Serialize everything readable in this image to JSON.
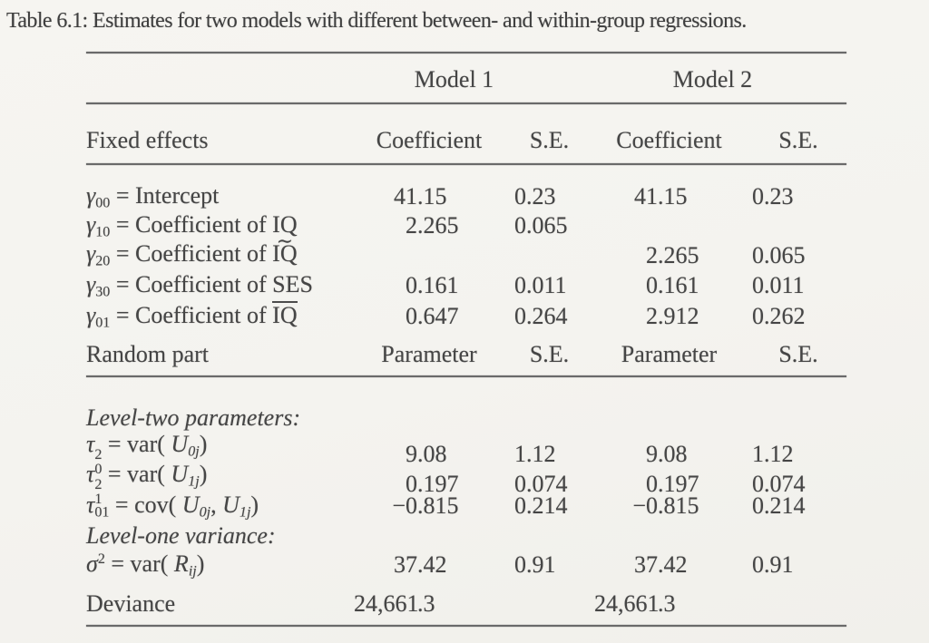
{
  "title": "Table 6.1: Estimates for two models with different between- and within-group regressions.",
  "table": {
    "group_headers": {
      "model1": "Model 1",
      "model2": "Model 2"
    },
    "fixed": {
      "header": {
        "label": "Fixed effects",
        "c1": "Coefficient",
        "c2": "S.E.",
        "c3": "Coefficient",
        "c4": "S.E."
      },
      "rows": [
        {
          "label": [
            {
              "i": "γ"
            },
            {
              "sub": "00"
            },
            {
              "t": " = Intercept"
            }
          ],
          "m1c": "41.15",
          "m1se": "0.23",
          "m2c": "41.15",
          "m2se": "0.23"
        },
        {
          "label": [
            {
              "i": "γ"
            },
            {
              "sub": "10"
            },
            {
              "t": " = Coefficient of IQ"
            }
          ],
          "m1c": "2.265",
          "m1se": "0.065",
          "m2c": "",
          "m2se": ""
        },
        {
          "label": [
            {
              "i": "γ"
            },
            {
              "sub": "20"
            },
            {
              "t": " = Coefficient of "
            },
            {
              "tl": "IQ"
            }
          ],
          "m1c": "",
          "m1se": "",
          "m2c": "2.265",
          "m2se": "0.065"
        },
        {
          "label": [
            {
              "i": "γ"
            },
            {
              "sub": "30"
            },
            {
              "t": " = Coefficient of SES"
            }
          ],
          "m1c": "0.161",
          "m1se": "0.011",
          "m2c": "0.161",
          "m2se": "0.011"
        },
        {
          "label": [
            {
              "i": "γ"
            },
            {
              "sub": "01"
            },
            {
              "t": " = Coefficient of "
            },
            {
              "ov": "IQ"
            }
          ],
          "m1c": "0.647",
          "m1se": "0.264",
          "m2c": "2.912",
          "m2se": "0.262"
        }
      ]
    },
    "random": {
      "header": {
        "label": "Random part",
        "c1": "Parameter",
        "c2": "S.E.",
        "c3": "Parameter",
        "c4": "S.E."
      },
      "section1": "Level-two parameters:",
      "rows1": [
        {
          "label": [
            {
              "i": "τ"
            },
            {
              "ss": {
                "sup": "2",
                "sub": "0"
              }
            },
            {
              "t": " = var( "
            },
            {
              "i": "U"
            },
            {
              "isub": "0j"
            },
            {
              "t": ")"
            }
          ],
          "m1c": "9.08",
          "m1se": "1.12",
          "m2c": "9.08",
          "m2se": "1.12"
        },
        {
          "label": [
            {
              "i": "τ"
            },
            {
              "ss": {
                "sup": "2",
                "sub": "1"
              }
            },
            {
              "t": " = var( "
            },
            {
              "i": "U"
            },
            {
              "isub": "1j"
            },
            {
              "t": ")"
            }
          ],
          "m1c": "0.197",
          "m1se": "0.074",
          "m2c": "0.197",
          "m2se": "0.074"
        },
        {
          "label": [
            {
              "i": "τ"
            },
            {
              "sub": "01"
            },
            {
              "t": " = cov( "
            },
            {
              "i": "U"
            },
            {
              "isub": "0j"
            },
            {
              "t": ", "
            },
            {
              "i": "U"
            },
            {
              "isub": "1j"
            },
            {
              "t": ")"
            }
          ],
          "m1c": "−0.815",
          "m1se": "0.214",
          "m2c": "−0.815",
          "m2se": "0.214"
        }
      ],
      "section2": "Level-one variance:",
      "rows2": [
        {
          "label": [
            {
              "i": "σ"
            },
            {
              "sup": "2"
            },
            {
              "t": " = var( "
            },
            {
              "i": "R"
            },
            {
              "isub": "ij"
            },
            {
              "t": ")"
            }
          ],
          "m1c": "37.42",
          "m1se": "0.91",
          "m2c": "37.42",
          "m2se": "0.91"
        }
      ],
      "deviance": {
        "label": "Deviance",
        "m1c": "24,661.3",
        "m2c": "24,661.3"
      }
    }
  }
}
